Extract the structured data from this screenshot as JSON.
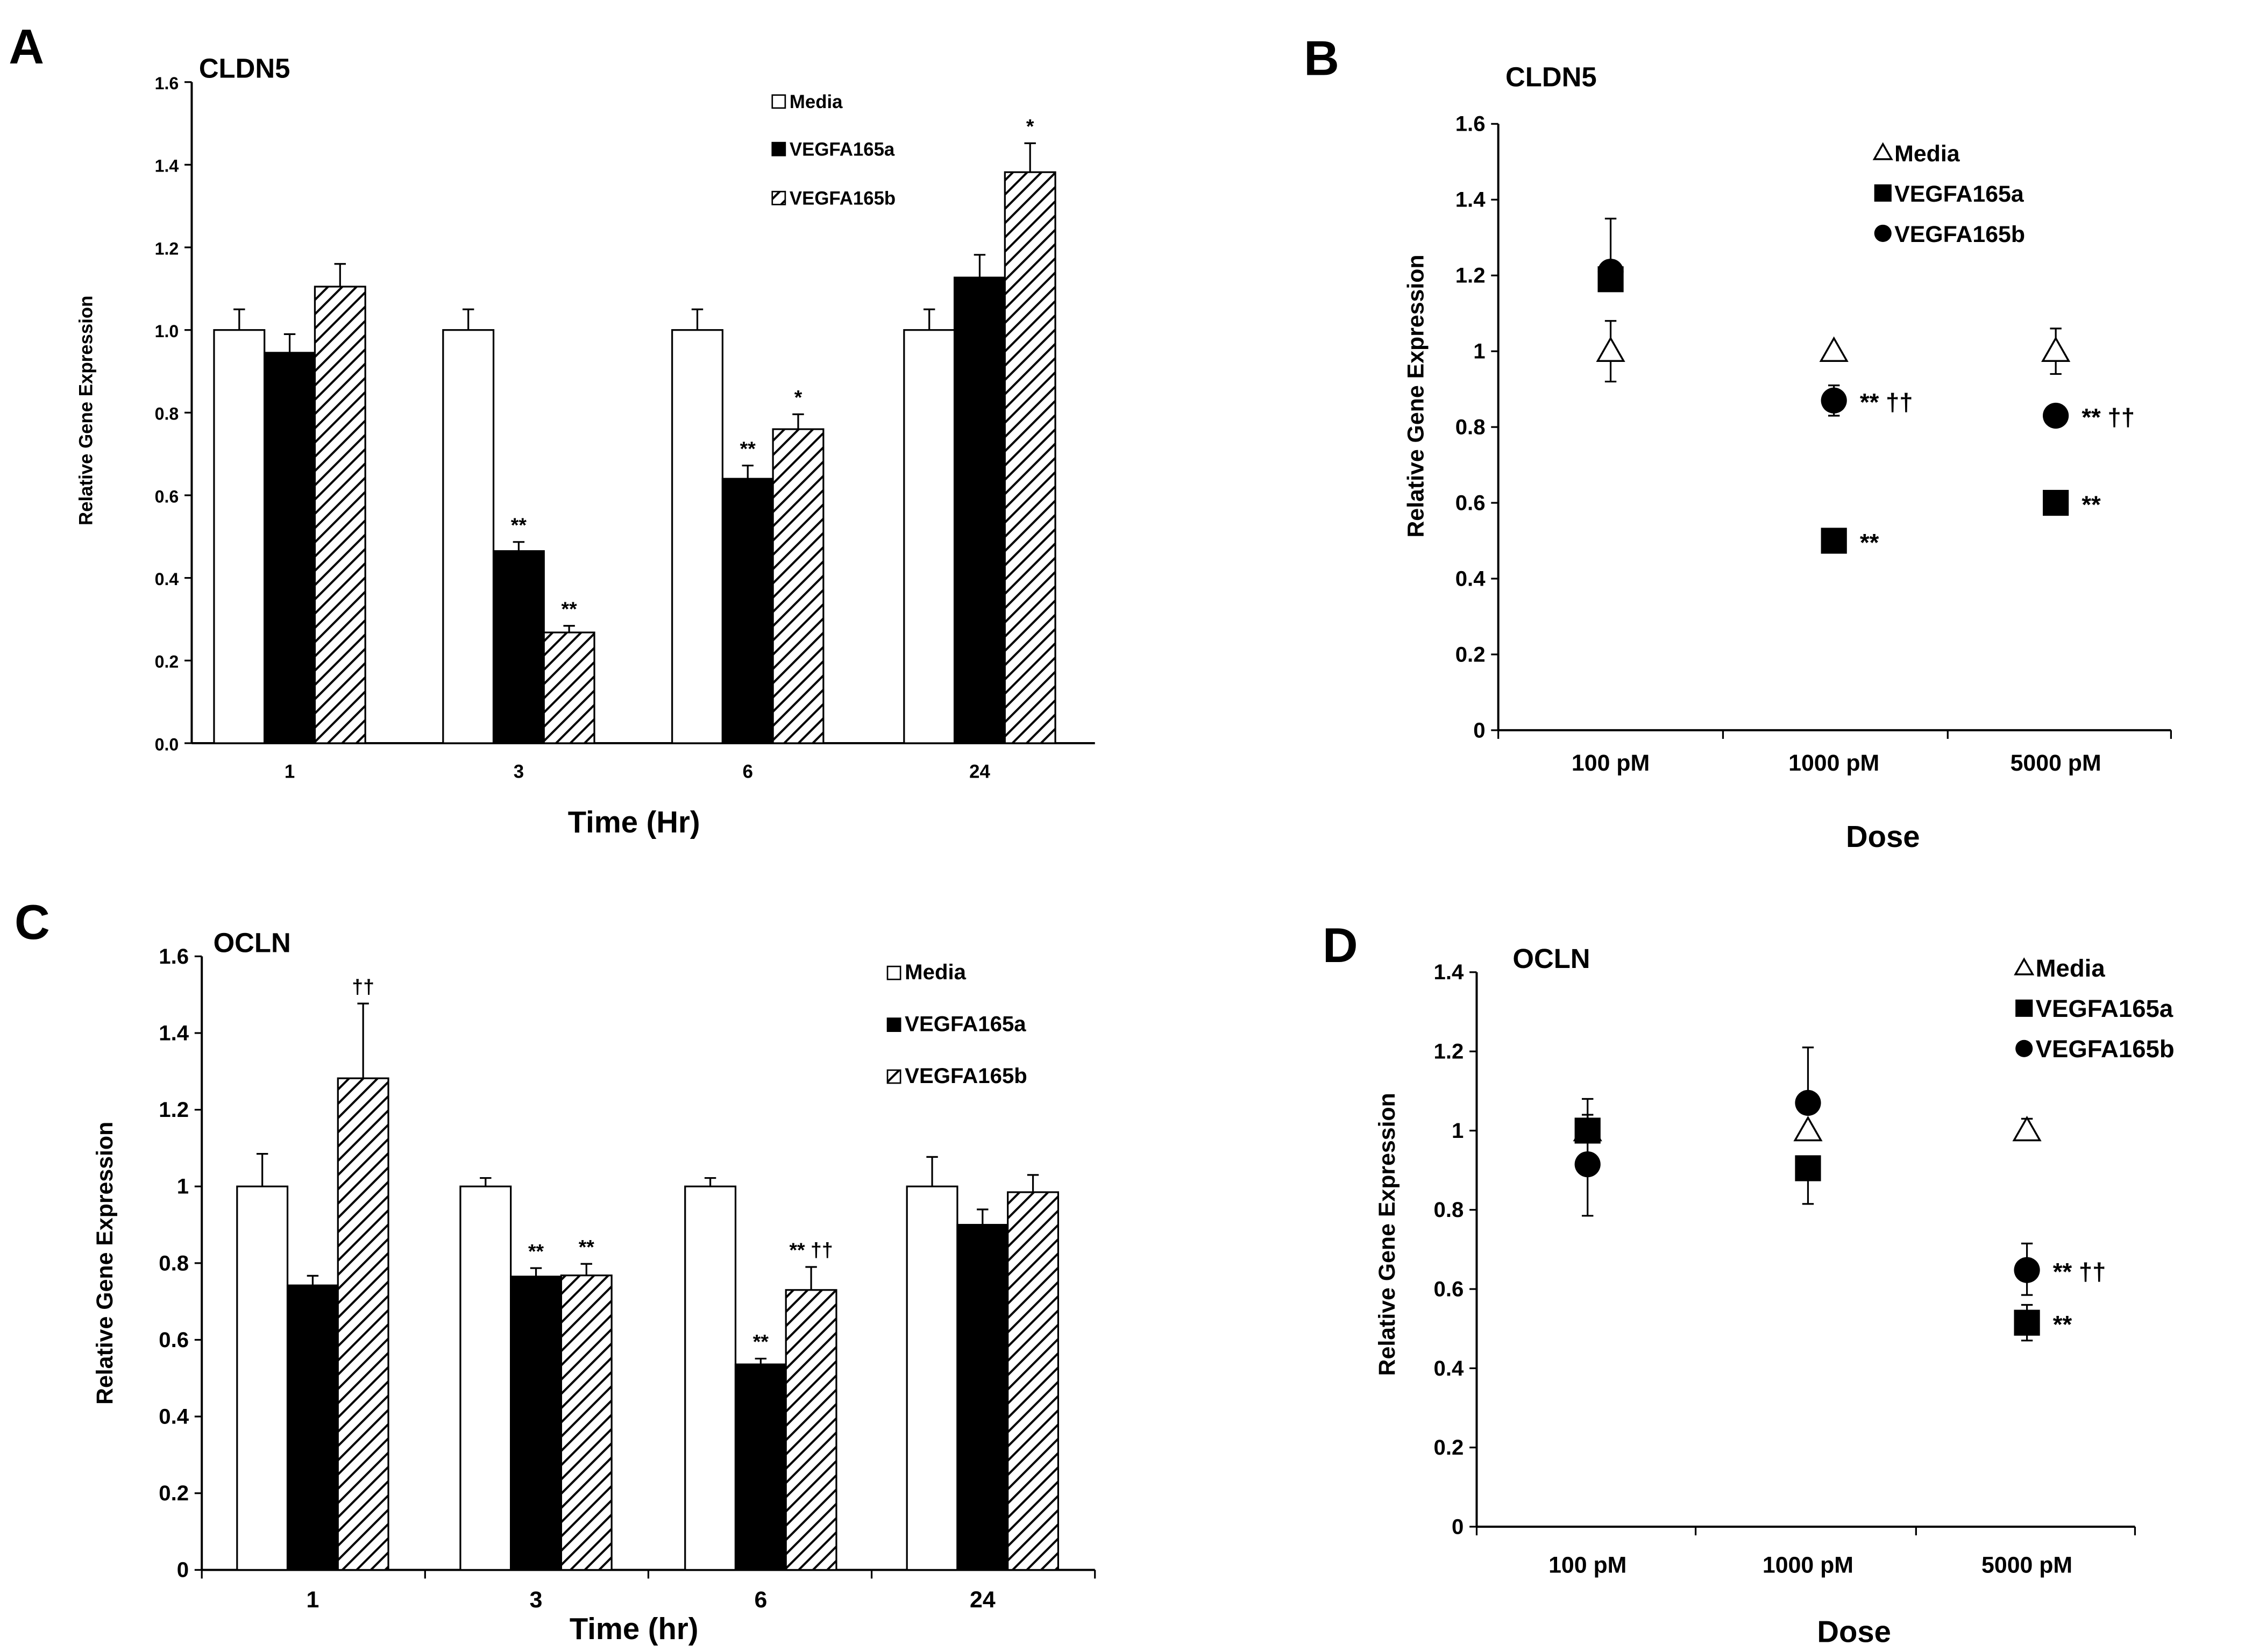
{
  "colors": {
    "media": "#ffffff",
    "vegfa165a": "#000000",
    "vegfa165b_hatch": "#000000",
    "axis": "#000000"
  },
  "chart_data": [
    {
      "panel": "A",
      "type": "bar",
      "title": "CLDN5",
      "xlabel": "Time (Hr)",
      "ylabel": "Relative Gene Expression",
      "ylim": [
        0,
        1.6
      ],
      "yticks": [
        "0.0",
        "0.2",
        "0.4",
        "0.6",
        "0.8",
        "1.0",
        "1.2",
        "1.4",
        "1.6"
      ],
      "categories": [
        "1",
        "3",
        "6",
        "24"
      ],
      "legend": "top-right",
      "series": [
        {
          "name": "Media",
          "style": "open",
          "values": [
            1.0,
            1.0,
            1.0,
            1.0
          ],
          "errors": [
            0.05,
            0.05,
            0.05,
            0.05
          ],
          "annotations": [
            "",
            "",
            "",
            ""
          ]
        },
        {
          "name": "VEGFA165a",
          "style": "filled",
          "values": [
            0.945,
            0.465,
            0.64,
            1.127
          ],
          "errors": [
            0.045,
            0.022,
            0.032,
            0.055
          ],
          "annotations": [
            "",
            "**",
            "**",
            ""
          ]
        },
        {
          "name": "VEGFA165b",
          "style": "hatched",
          "values": [
            1.105,
            0.268,
            0.76,
            1.382
          ],
          "errors": [
            0.055,
            0.016,
            0.036,
            0.07
          ],
          "annotations": [
            "",
            "**",
            "*",
            "*"
          ]
        }
      ]
    },
    {
      "panel": "B",
      "type": "scatter",
      "title": "CLDN5",
      "xlabel": "Dose",
      "ylabel": "Relative Gene Expression",
      "ylim": [
        0,
        1.6
      ],
      "yticks": [
        "0",
        "0.2",
        "0.4",
        "0.6",
        "0.8",
        "1",
        "1.2",
        "1.4",
        "1.6"
      ],
      "categories": [
        "100 pM",
        "1000 pM",
        "5000 pM"
      ],
      "legend": "top-right",
      "series": [
        {
          "name": "Media",
          "marker": "triangle-open",
          "values": [
            1.0,
            1.0,
            1.0
          ],
          "err_low": [
            0.92,
            null,
            0.94
          ],
          "err_high": [
            1.08,
            null,
            1.06
          ],
          "annotations": [
            "",
            "",
            ""
          ]
        },
        {
          "name": "VEGFA165a",
          "marker": "square",
          "values": [
            1.19,
            0.5,
            0.6
          ],
          "err_low": [
            null,
            null,
            null
          ],
          "err_high": [
            null,
            null,
            null
          ],
          "annotations": [
            "",
            "**",
            "**"
          ]
        },
        {
          "name": "VEGFA165b",
          "marker": "circle",
          "values": [
            1.21,
            0.87,
            0.83
          ],
          "err_low": [
            null,
            0.83,
            null
          ],
          "err_high": [
            1.35,
            0.91,
            null
          ],
          "annotations": [
            "",
            "** ††",
            "** ††"
          ]
        }
      ]
    },
    {
      "panel": "C",
      "type": "bar",
      "title": "OCLN",
      "xlabel": "Time (hr)",
      "ylabel": "Relative Gene Expression",
      "ylim": [
        0,
        1.6
      ],
      "yticks": [
        "0",
        "0.2",
        "0.4",
        "0.6",
        "0.8",
        "1",
        "1.2",
        "1.4",
        "1.6"
      ],
      "categories": [
        "1",
        "3",
        "6",
        "24"
      ],
      "legend": "top-right",
      "series": [
        {
          "name": "Media",
          "style": "open",
          "values": [
            1.0,
            1.0,
            1.0,
            1.0
          ],
          "errors": [
            0.085,
            0.022,
            0.022,
            0.077
          ],
          "annotations": [
            "",
            "",
            "",
            ""
          ]
        },
        {
          "name": "VEGFA165a",
          "style": "filled",
          "values": [
            0.742,
            0.765,
            0.536,
            0.9
          ],
          "errors": [
            0.025,
            0.022,
            0.015,
            0.04
          ],
          "annotations": [
            "",
            "**",
            "**",
            ""
          ]
        },
        {
          "name": "VEGFA165b",
          "style": "hatched",
          "values": [
            1.282,
            0.768,
            0.73,
            0.985
          ],
          "errors": [
            0.195,
            0.03,
            0.06,
            0.045
          ],
          "annotations": [
            "††",
            "**",
            "** ††",
            ""
          ]
        }
      ]
    },
    {
      "panel": "D",
      "type": "scatter",
      "title": "OCLN",
      "xlabel": "Dose",
      "ylabel": "Relative Gene Expression",
      "ylim": [
        0,
        1.4
      ],
      "yticks": [
        "0",
        "0.2",
        "0.4",
        "0.6",
        "0.8",
        "1",
        "1.2",
        "1.4"
      ],
      "categories": [
        "100 pM",
        "1000 pM",
        "5000 pM"
      ],
      "legend": "top-right",
      "series": [
        {
          "name": "Media",
          "marker": "triangle-open",
          "values": [
            1.0,
            1.0,
            1.0
          ],
          "err_low": [
            null,
            null,
            null
          ],
          "err_high": [
            null,
            null,
            1.03
          ],
          "annotations": [
            "",
            "",
            ""
          ]
        },
        {
          "name": "VEGFA165a",
          "marker": "square",
          "values": [
            1.0,
            0.905,
            0.515
          ],
          "err_low": [
            null,
            0.815,
            0.47
          ],
          "err_high": [
            1.08,
            null,
            0.56
          ],
          "annotations": [
            "",
            "",
            "**"
          ]
        },
        {
          "name": "VEGFA165b",
          "marker": "circle",
          "values": [
            0.915,
            1.07,
            0.648
          ],
          "err_low": [
            0.785,
            null,
            0.585
          ],
          "err_high": [
            1.04,
            1.21,
            0.715
          ],
          "annotations": [
            "",
            "",
            "** ††"
          ]
        }
      ]
    }
  ]
}
